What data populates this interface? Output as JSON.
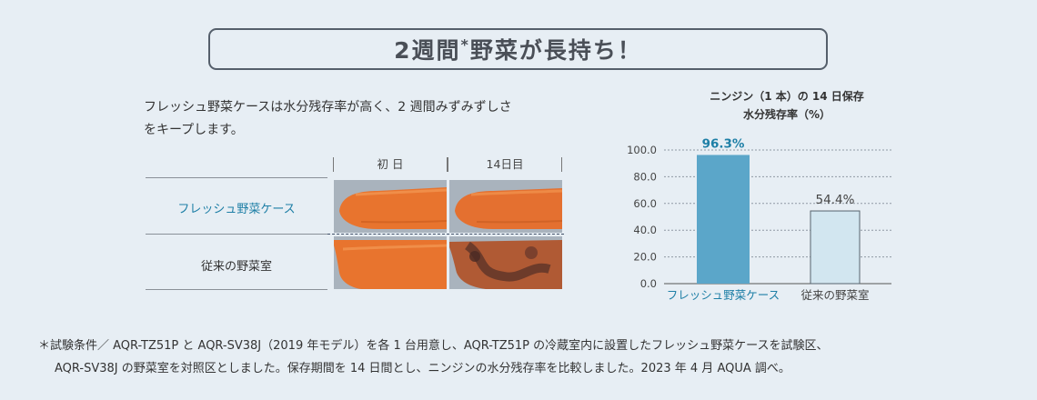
{
  "headline": {
    "pre": "2週間",
    "sup": "*",
    "post": "野菜が長持ち！"
  },
  "description": {
    "line1": "フレッシュ野菜ケースは水分残存率が高く、2 週間みずみずしさ",
    "line2": "をキープします。"
  },
  "comparison": {
    "columns": [
      "初 日",
      "14日目"
    ],
    "rows": [
      "フレッシュ野菜ケース",
      "従来の野菜室"
    ]
  },
  "colors": {
    "accent": "#1e7fa6",
    "bar_primary": "#5ba6c9",
    "bar_secondary": "#d2e6f0",
    "bar_secondary_border": "#57646e"
  },
  "chart_data": {
    "type": "bar",
    "title": "ニンジン（1 本）の 14 日保存",
    "subtitle": "水分残存率（%）",
    "categories": [
      "フレッシュ野菜ケース",
      "従来の野菜室"
    ],
    "values": [
      96.3,
      54.4
    ],
    "value_labels": [
      "96.3%",
      "54.4%"
    ],
    "yticks": [
      "0.0",
      "20.0",
      "40.0",
      "60.0",
      "80.0",
      "100.0"
    ],
    "ylim": [
      0,
      100
    ],
    "grid": true
  },
  "footnote": {
    "line1": "＊試験条件／ AQR-TZ51P と AQR-SV38J（2019 年モデル）を各 1 台用意し、AQR-TZ51P の冷蔵室内に設置したフレッシュ野菜ケースを試験区、",
    "line2": "AQR-SV38J の野菜室を対照区としました。保存期間を 14 日間とし、ニンジンの水分残存率を比較しました。2023 年 4 月 AQUA 調べ。"
  }
}
